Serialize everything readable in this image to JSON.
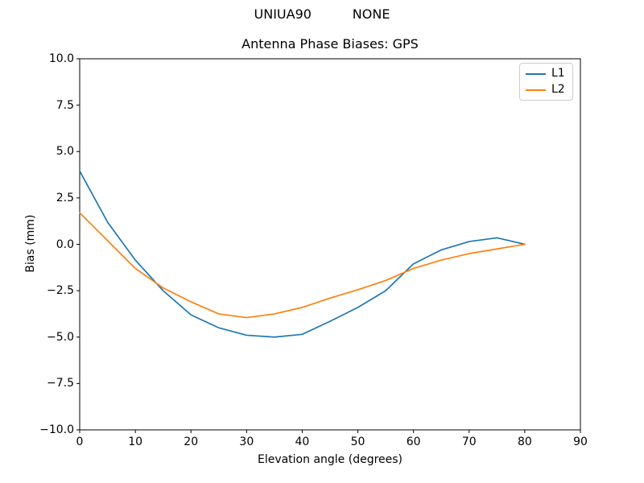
{
  "figure_title": "UNIUA90          NONE",
  "chart_data": {
    "type": "line",
    "title": "Antenna Phase Biases: GPS",
    "xlabel": "Elevation angle (degrees)",
    "ylabel": "Bias (mm)",
    "xlim": [
      0,
      90
    ],
    "ylim": [
      -10,
      10
    ],
    "grid": false,
    "legend_position": "upper-right",
    "background": "#ffffff",
    "axis_color": "#000000",
    "x": [
      0,
      5,
      10,
      15,
      20,
      25,
      30,
      35,
      40,
      45,
      50,
      55,
      60,
      65,
      70,
      75,
      80
    ],
    "series": [
      {
        "name": "L1",
        "color": "#1f77b4",
        "values": [
          3.95,
          1.2,
          -0.85,
          -2.5,
          -3.8,
          -4.5,
          -4.9,
          -5.0,
          -4.85,
          -4.15,
          -3.4,
          -2.5,
          -1.05,
          -0.3,
          0.15,
          0.35,
          0.0
        ]
      },
      {
        "name": "L2",
        "color": "#ff7f0e",
        "values": [
          1.7,
          0.2,
          -1.3,
          -2.35,
          -3.1,
          -3.75,
          -3.95,
          -3.75,
          -3.4,
          -2.9,
          -2.45,
          -1.95,
          -1.3,
          -0.85,
          -0.5,
          -0.25,
          0.0
        ]
      }
    ],
    "xticks": [
      0,
      10,
      20,
      30,
      40,
      50,
      60,
      70,
      80,
      90
    ],
    "xticklabels": [
      "0",
      "10",
      "20",
      "30",
      "40",
      "50",
      "60",
      "70",
      "80",
      "90"
    ],
    "yticks": [
      10,
      7.5,
      5,
      2.5,
      0,
      -2.5,
      -5,
      -7.5,
      -10
    ],
    "yticklabels": [
      "10.0",
      "7.5",
      "5.0",
      "2.5",
      "0.0",
      "−2.5",
      "−5.0",
      "−7.5",
      "−10.0"
    ]
  }
}
